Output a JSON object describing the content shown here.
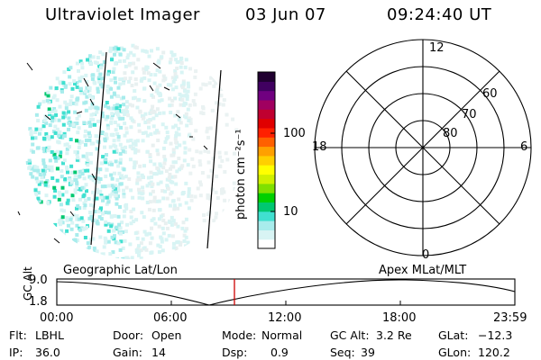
{
  "header": {
    "instrument": "Ultraviolet Imager",
    "date": "03 Jun 07",
    "time": "09:24:40 UT"
  },
  "colorbar": {
    "label": "photon cm⁻²s⁻¹",
    "ticks": [
      "100",
      "10"
    ],
    "colors": [
      "#ffffff",
      "#d8f4f4",
      "#a8ecec",
      "#40e0d0",
      "#00c870",
      "#00d000",
      "#80e000",
      "#d0f000",
      "#ffff00",
      "#ffd000",
      "#ffa000",
      "#ff6000",
      "#ff2000",
      "#e00000",
      "#c00030",
      "#a00060",
      "#700080",
      "#400060",
      "#200030"
    ]
  },
  "polar_grid": {
    "mlt_labels": [
      "12",
      "18",
      "6",
      "0"
    ],
    "lat_labels": [
      "60",
      "70",
      "80"
    ]
  },
  "map_labels": {
    "left": "Geographic Lat/Lon",
    "right": "Apex MLat/MLT"
  },
  "altitude_plot": {
    "ylabel": "GC Alt",
    "yticks": [
      "9.0",
      "1.8"
    ],
    "xticks": [
      "00:00",
      "06:00",
      "12:00",
      "18:00",
      "23:59"
    ],
    "marker_color": "#cc0000"
  },
  "info": {
    "flt_label": "Flt:",
    "flt_value": "LBHL",
    "ip_label": "IP:",
    "ip_value": "36.0",
    "door_label": "Door:",
    "door_value": "Open",
    "gain_label": "Gain:",
    "gain_value": "14",
    "mode_label": "Mode:",
    "mode_value": "Normal",
    "dsp_label": "Dsp:",
    "dsp_value": "0.9",
    "gcalt_label": "GC Alt:",
    "gcalt_value": "3.2 Re",
    "seq_label": "Seq:",
    "seq_value": "39",
    "glat_label": "GLat:",
    "glat_value": "−12.3",
    "glon_label": "GLon:",
    "glon_value": "120.2"
  }
}
